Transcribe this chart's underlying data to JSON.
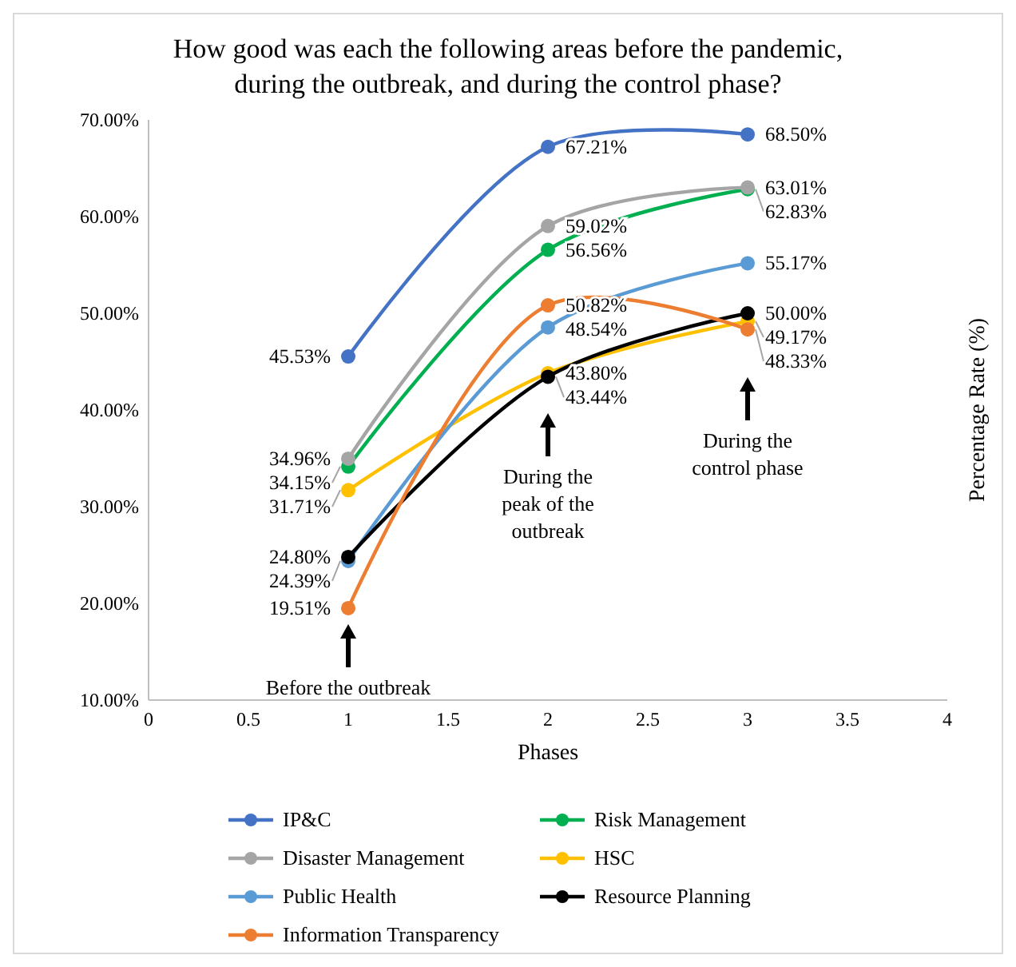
{
  "chart_data": {
    "type": "line",
    "title": "How good was each the following areas before the pandemic, during the outbreak, and during the control phase?",
    "xlabel": "Phases",
    "ylabel": "Percentage Rate (%)",
    "x": [
      1,
      2,
      3
    ],
    "xlim": [
      0,
      4
    ],
    "xticks": [
      0,
      0.5,
      1,
      1.5,
      2,
      2.5,
      3,
      3.5,
      4
    ],
    "ylim": [
      10,
      70
    ],
    "yticks": [
      {
        "value": 10,
        "label": "10.00%"
      },
      {
        "value": 20,
        "label": "20.00%"
      },
      {
        "value": 30,
        "label": "30.00%"
      },
      {
        "value": 40,
        "label": "40.00%"
      },
      {
        "value": 50,
        "label": "50.00%"
      },
      {
        "value": 60,
        "label": "60.00%"
      },
      {
        "value": 70,
        "label": "70.00%"
      }
    ],
    "grid": false,
    "legend": "bottom",
    "marker": "circle",
    "line_style": "solid",
    "series": [
      {
        "name": "IP&C",
        "color": "#4472c4",
        "values": [
          45.53,
          67.21,
          68.5
        ],
        "value_labels": [
          "45.53%",
          "67.21%",
          "68.50%"
        ]
      },
      {
        "name": "Risk Management",
        "color": "#00b050",
        "values": [
          34.15,
          56.56,
          62.83
        ],
        "value_labels": [
          "34.15%",
          "56.56%",
          "62.83%"
        ]
      },
      {
        "name": "Disaster Management",
        "color": "#a5a5a5",
        "values": [
          34.96,
          59.02,
          63.01
        ],
        "value_labels": [
          "34.96%",
          "59.02%",
          "63.01%"
        ]
      },
      {
        "name": "HSC",
        "color": "#ffc000",
        "values": [
          31.71,
          43.8,
          49.17
        ],
        "value_labels": [
          "31.71%",
          "43.80%",
          "49.17%"
        ]
      },
      {
        "name": "Public Health",
        "color": "#5b9bd5",
        "values": [
          24.39,
          48.54,
          55.17
        ],
        "value_labels": [
          "24.39%",
          "48.54%",
          "55.17%"
        ]
      },
      {
        "name": "Resource Planning",
        "color": "#000000",
        "values": [
          24.8,
          43.44,
          50
        ],
        "value_labels": [
          "24.80%",
          "43.44%",
          "50.00%"
        ]
      },
      {
        "name": "Information Transparency",
        "color": "#ed7d31",
        "values": [
          19.51,
          50.82,
          48.33
        ],
        "value_labels": [
          "19.51%",
          "50.82%",
          "48.33%"
        ]
      }
    ],
    "annotations": [
      "Before the outbreak",
      "During the peak of the outbreak",
      "During the control phase"
    ]
  }
}
